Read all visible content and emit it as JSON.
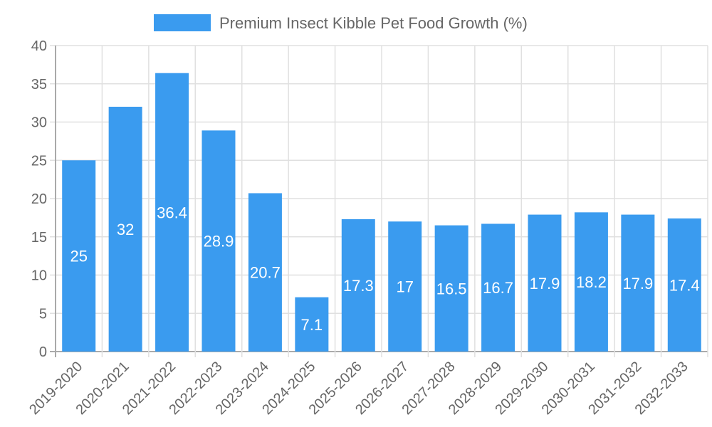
{
  "chart_data": {
    "type": "bar",
    "title": "",
    "xlabel": "",
    "ylabel": "",
    "ylim": [
      0,
      40
    ],
    "ytick_step": 5,
    "grid": true,
    "legend_position": "top",
    "categories": [
      "2019-2020",
      "2020-2021",
      "2021-2022",
      "2022-2023",
      "2023-2024",
      "2024-2025",
      "2025-2026",
      "2026-2027",
      "2027-2028",
      "2028-2029",
      "2029-2030",
      "2030-2031",
      "2031-2032",
      "2032-2033"
    ],
    "series": [
      {
        "name": "Premium Insect Kibble Pet Food Growth (%)",
        "color": "#3a9bef",
        "values": [
          25,
          32,
          36.4,
          28.9,
          20.7,
          7.1,
          17.3,
          17,
          16.5,
          16.7,
          17.9,
          18.2,
          17.9,
          17.4
        ]
      }
    ]
  }
}
